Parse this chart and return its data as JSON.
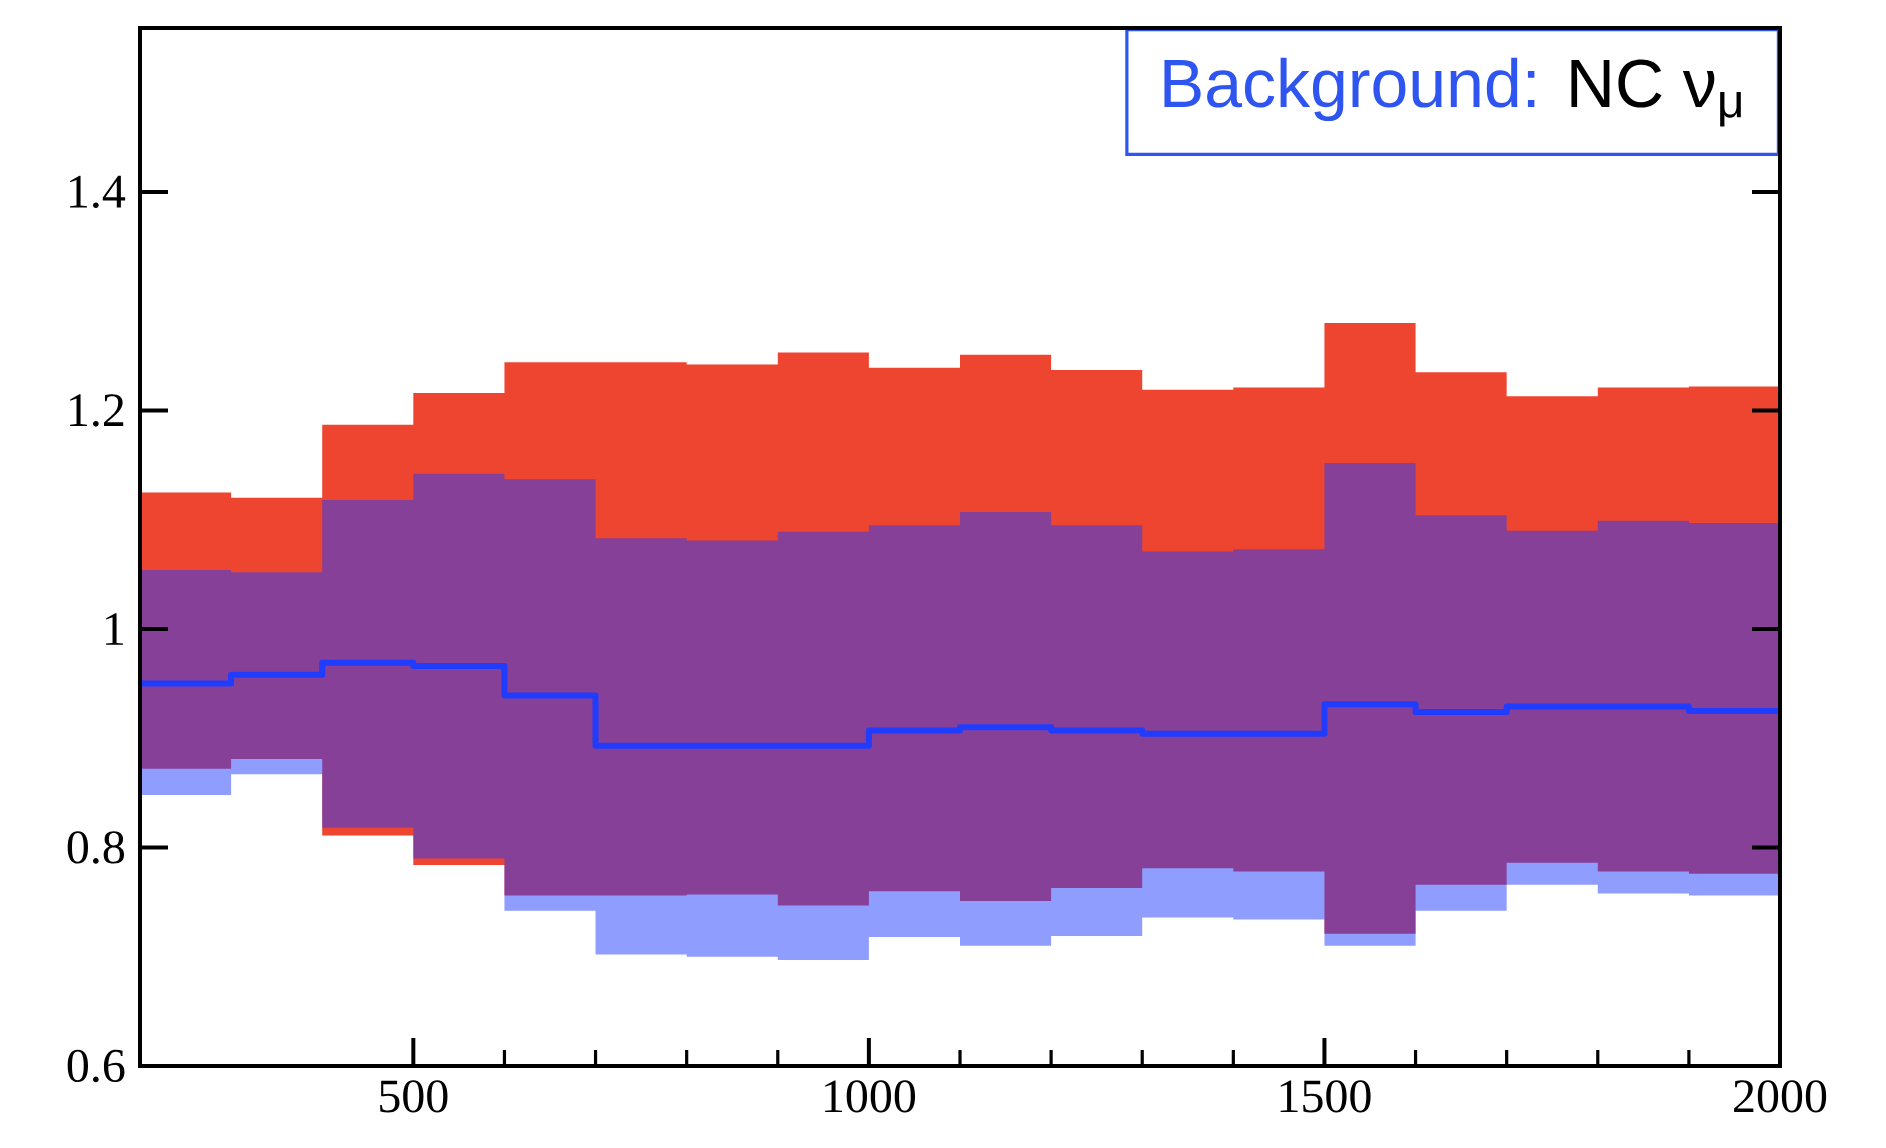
{
  "chart_data": {
    "type": "step",
    "x": [
      200,
      300,
      400,
      500,
      600,
      700,
      800,
      900,
      1000,
      1100,
      1200,
      1300,
      1400,
      1500,
      1600,
      1700,
      1800,
      1900,
      2000
    ],
    "series": [
      {
        "color": "#ee4530",
        "values": [
          null,
          null,
          null,
          null,
          null,
          null,
          null,
          null,
          null,
          null,
          null,
          null,
          null,
          null,
          null,
          null,
          null,
          null,
          null
        ],
        "lower": [
          0.872,
          0.881,
          0.811,
          0.784,
          0.756,
          0.756,
          0.757,
          0.747,
          0.76,
          0.751,
          0.763,
          0.781,
          0.778,
          0.721,
          0.766,
          0.786,
          0.778,
          0.776,
          0.776
        ],
        "upper": [
          1.125,
          1.12,
          1.187,
          1.216,
          1.244,
          1.244,
          1.242,
          1.253,
          1.239,
          1.251,
          1.237,
          1.219,
          1.221,
          1.28,
          1.235,
          1.213,
          1.221,
          1.222,
          1.222
        ]
      },
      {
        "color": "#1f3cff",
        "values": [
          0.95,
          0.958,
          0.969,
          0.966,
          0.939,
          0.893,
          0.893,
          0.893,
          0.907,
          0.91,
          0.907,
          0.904,
          0.904,
          0.931,
          0.924,
          0.929,
          0.929,
          0.925,
          0.925
        ],
        "lower": [
          0.848,
          0.867,
          0.818,
          0.79,
          0.742,
          0.702,
          0.7,
          0.697,
          0.718,
          0.71,
          0.719,
          0.736,
          0.734,
          0.71,
          0.742,
          0.766,
          0.758,
          0.756,
          0.756
        ],
        "upper": [
          1.054,
          1.052,
          1.118,
          1.142,
          1.137,
          1.083,
          1.081,
          1.089,
          1.095,
          1.107,
          1.095,
          1.071,
          1.073,
          1.152,
          1.104,
          1.09,
          1.099,
          1.097,
          1.097
        ]
      }
    ],
    "xlim": [
      200,
      2000
    ],
    "ylim": [
      0.6,
      1.55
    ],
    "xticks": [
      500,
      1000,
      1500,
      2000
    ],
    "yticks": [
      0.6,
      0.8,
      1,
      1.2,
      1.4
    ],
    "annotations": [
      "Background:",
      "NC ν$_{μ}$"
    ]
  }
}
